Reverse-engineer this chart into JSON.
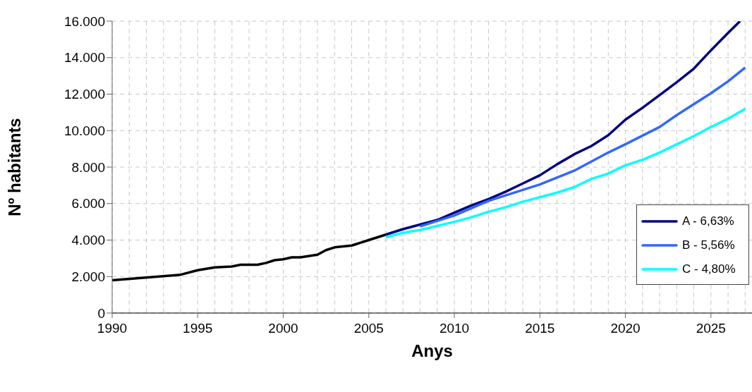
{
  "chart_data": {
    "type": "line",
    "xlabel": "Anys",
    "ylabel": "Nº habitants",
    "xlim": [
      1990,
      2027.4
    ],
    "xticks": [
      1990,
      {
        "value": 1991,
        "label": null
      },
      {
        "value": 1992,
        "label": null
      },
      {
        "value": 1993,
        "label": null
      },
      {
        "value": 1994,
        "label": null
      },
      1995,
      {
        "value": 1996,
        "label": null
      },
      {
        "value": 1997,
        "label": null
      },
      {
        "value": 1998,
        "label": null
      },
      {
        "value": 1999,
        "label": null
      },
      2000,
      {
        "value": 2001,
        "label": null
      },
      {
        "value": 2002,
        "label": null
      },
      {
        "value": 2003,
        "label": null
      },
      {
        "value": 2004,
        "label": null
      },
      2005,
      {
        "value": 2006,
        "label": null
      },
      {
        "value": 2007,
        "label": null
      },
      {
        "value": 2008,
        "label": null
      },
      {
        "value": 2009,
        "label": null
      },
      2010,
      {
        "value": 2011,
        "label": null
      },
      {
        "value": 2012,
        "label": null
      },
      {
        "value": 2013,
        "label": null
      },
      {
        "value": 2014,
        "label": null
      },
      2015,
      {
        "value": 2016,
        "label": null
      },
      {
        "value": 2017,
        "label": null
      },
      {
        "value": 2018,
        "label": null
      },
      {
        "value": 2019,
        "label": null
      },
      2020,
      {
        "value": 2021,
        "label": null
      },
      {
        "value": 2022,
        "label": null
      },
      {
        "value": 2023,
        "label": null
      },
      {
        "value": 2024,
        "label": null
      },
      2025,
      {
        "value": 2026,
        "label": null
      },
      {
        "value": 2027,
        "label": null
      }
    ],
    "ylim": [
      0,
      16000
    ],
    "yticks": [
      0,
      {
        "value": 2000,
        "label": "2.000"
      },
      {
        "value": 4000,
        "label": "4.000"
      },
      {
        "value": 6000,
        "label": "6.000"
      },
      {
        "value": 8000,
        "label": "8.000"
      },
      {
        "value": 10000,
        "label": "10.000"
      },
      {
        "value": 12000,
        "label": "12.000"
      },
      {
        "value": 14000,
        "label": "14.000"
      },
      {
        "value": 16000,
        "label": "16.000"
      }
    ],
    "grid": true,
    "legend": "bottom right",
    "series": [
      {
        "color": "#000000",
        "x": [
          1990,
          1994,
          1995,
          1996,
          1997,
          1997.5,
          1998.5,
          1999,
          1999.5,
          2000,
          2000.5,
          2001,
          2002,
          2002.5,
          2003,
          2004,
          2005,
          2006
        ],
        "values": [
          1800,
          2100,
          2350,
          2500,
          2550,
          2650,
          2650,
          2750,
          2900,
          2950,
          3050,
          3050,
          3200,
          3450,
          3600,
          3700,
          4000,
          4300
        ]
      },
      {
        "name": "A - 6,63%",
        "color": "#000080",
        "x": [
          2006,
          2007,
          2009,
          2010,
          2011,
          2012,
          2013,
          2014,
          2015,
          2016,
          2017,
          2018,
          2019,
          2020,
          2021,
          2022,
          2023,
          2024,
          2025,
          2026,
          2026.7
        ],
        "values": [
          4300,
          4600,
          5100,
          5500,
          5900,
          6250,
          6650,
          7100,
          7550,
          8150,
          8700,
          9150,
          9750,
          10600,
          11250,
          11950,
          12650,
          13400,
          14400,
          15350,
          16000
        ]
      },
      {
        "name": "B - 5,56%",
        "color": "#3366ff",
        "x": [
          2008,
          2010,
          2012,
          2014,
          2015,
          2017,
          2019,
          2020,
          2022,
          2023,
          2024,
          2025,
          2026,
          2027
        ],
        "values": [
          4750,
          5350,
          6150,
          6750,
          7050,
          7800,
          8800,
          9250,
          10200,
          10850,
          11450,
          12050,
          12700,
          13450
        ]
      },
      {
        "name": "C - 4,80%",
        "color": "#00ffff",
        "x": [
          2006,
          2007,
          2008,
          2010,
          2011,
          2012,
          2013,
          2014,
          2015,
          2016,
          2017,
          2018,
          2019,
          2020,
          2021,
          2022,
          2023,
          2024,
          2025,
          2026,
          2027
        ],
        "values": [
          4150,
          4400,
          4550,
          5000,
          5250,
          5550,
          5800,
          6100,
          6350,
          6600,
          6900,
          7350,
          7650,
          8100,
          8400,
          8800,
          9250,
          9700,
          10200,
          10650,
          11200
        ]
      }
    ]
  }
}
